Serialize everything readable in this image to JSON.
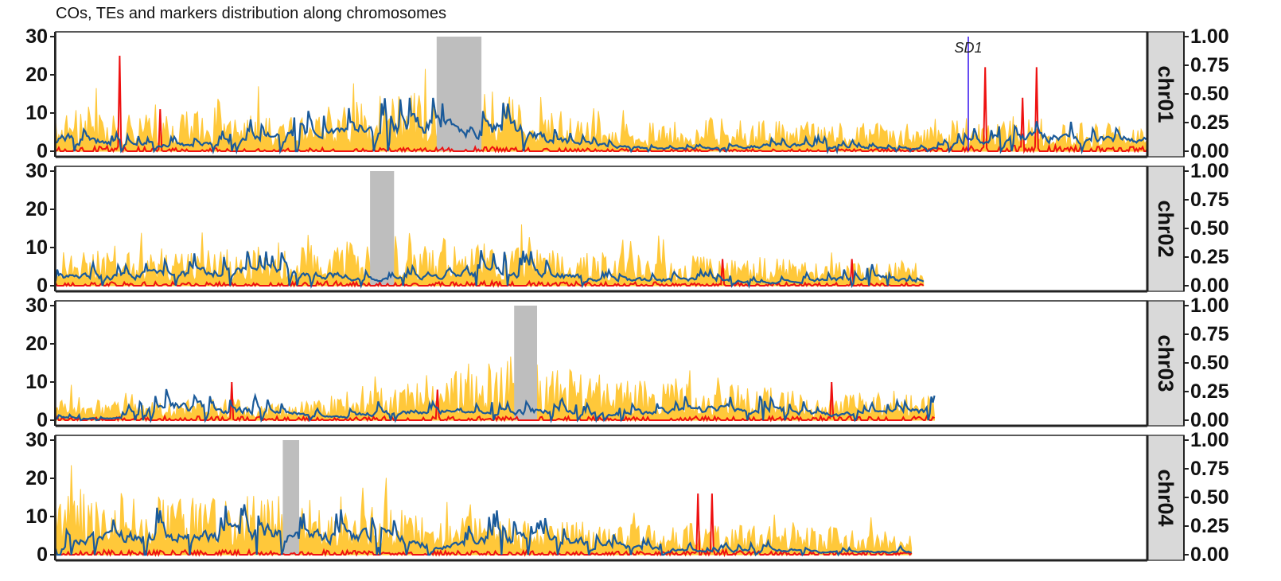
{
  "chart_data": {
    "type": "line",
    "title": "COs, TEs and markers distribution along chromosomes",
    "xlabel": "",
    "ylabel": "",
    "ylim_left": [
      0,
      30
    ],
    "ylim_right": [
      0,
      1
    ],
    "yticks_left": [
      "0",
      "10",
      "20",
      "30"
    ],
    "yticks_right": [
      "0.00",
      "0.25",
      "0.50",
      "0.75",
      "1.00"
    ],
    "xlim": [
      0,
      100
    ],
    "grid": false,
    "legend": "none",
    "colors": {
      "yellow": "#FFC83A",
      "red": "#EE1111",
      "blue": "#1A5A9A",
      "centromere": "#BEBEBE",
      "annotation": "#3311EE",
      "strip": "#D9D9D9"
    },
    "annotation": {
      "label": "SD1",
      "panel": 0,
      "x": 83.6
    },
    "panels": [
      {
        "label": "chr01",
        "x_end": 100,
        "centromere": [
          34.9,
          39.0
        ],
        "spikes": [
          {
            "x": 5.8,
            "y": 25
          },
          {
            "x": 9.5,
            "y": 11
          },
          {
            "x": 85.1,
            "y": 22
          },
          {
            "x": 88.5,
            "y": 14
          },
          {
            "x": 89.9,
            "y": 22
          }
        ],
        "env": {
          "x": [
            0,
            5,
            10,
            15,
            20,
            25,
            30,
            34,
            39,
            42,
            45,
            50,
            55,
            60,
            65,
            70,
            75,
            80,
            85,
            90,
            95,
            100
          ],
          "yellow": [
            9,
            8,
            8,
            9,
            8,
            10,
            12,
            14,
            15,
            12,
            9,
            7,
            6,
            7,
            7,
            6,
            6,
            7,
            6,
            7,
            6,
            6
          ],
          "blue": [
            5,
            3,
            2,
            3,
            5,
            7,
            8,
            9,
            7,
            8,
            4,
            2,
            1,
            1,
            2,
            2,
            1,
            1,
            4,
            5,
            4,
            4
          ],
          "red": [
            0.5,
            0.7,
            0.4,
            0.4,
            0.4,
            0.5,
            0.5,
            0.5,
            0.6,
            0.5,
            0.4,
            0.4,
            0.3,
            0.3,
            0.3,
            0.3,
            0.3,
            0.4,
            0.8,
            0.9,
            0.6,
            0.6
          ]
        }
      },
      {
        "label": "chr02",
        "x_end": 79.5,
        "centromere": [
          28.8,
          31.0
        ],
        "spikes": [
          {
            "x": 61.1,
            "y": 7
          },
          {
            "x": 72.9,
            "y": 7
          }
        ],
        "env": {
          "x": [
            0,
            5,
            10,
            15,
            20,
            25,
            29,
            31,
            35,
            40,
            45,
            50,
            55,
            60,
            65,
            70,
            75,
            79.5
          ],
          "yellow": [
            7,
            7,
            7,
            8,
            8,
            9,
            10,
            11,
            10,
            9,
            8,
            7,
            7,
            6,
            6,
            5,
            5,
            5
          ],
          "blue": [
            3,
            3,
            4,
            5,
            5,
            4,
            2,
            2,
            4,
            6,
            4,
            2,
            2,
            2,
            1,
            2,
            3,
            1
          ],
          "red": [
            0.6,
            0.5,
            0.5,
            0.5,
            0.5,
            0.6,
            0.5,
            0.5,
            0.5,
            0.6,
            0.6,
            0.5,
            0.5,
            0.4,
            0.4,
            0.4,
            0.4,
            0.4
          ]
        }
      },
      {
        "label": "chr03",
        "x_end": 80.5,
        "centromere": [
          42.0,
          44.1
        ],
        "spikes": [
          {
            "x": 16.1,
            "y": 10
          },
          {
            "x": 35.0,
            "y": 8
          },
          {
            "x": 71.1,
            "y": 10
          }
        ],
        "env": {
          "x": [
            0,
            5,
            10,
            15,
            20,
            25,
            30,
            35,
            40,
            42,
            44,
            50,
            55,
            60,
            65,
            70,
            75,
            80.5
          ],
          "yellow": [
            6,
            4,
            4,
            5,
            4,
            5,
            8,
            10,
            10,
            14,
            12,
            9,
            8,
            8,
            7,
            6,
            6,
            5
          ],
          "blue": [
            1,
            0.5,
            5,
            4,
            3,
            1,
            3,
            3,
            3,
            3,
            3,
            2,
            3,
            4,
            4,
            2,
            2,
            4
          ],
          "red": [
            0.5,
            0.4,
            0.6,
            0.5,
            0.5,
            0.4,
            0.5,
            0.5,
            0.5,
            0.5,
            0.5,
            0.5,
            0.5,
            0.5,
            0.5,
            0.6,
            0.5,
            0.5
          ]
        }
      },
      {
        "label": "chr04",
        "x_end": 78.4,
        "centromere": [
          20.8,
          22.3
        ],
        "spikes": [
          {
            "x": 58.8,
            "y": 16
          },
          {
            "x": 60.1,
            "y": 16
          }
        ],
        "env": {
          "x": [
            0,
            5,
            10,
            15,
            20,
            21,
            23,
            25,
            30,
            35,
            40,
            45,
            50,
            55,
            60,
            65,
            70,
            75,
            78.4
          ],
          "yellow": [
            12,
            13,
            13,
            13,
            13,
            12,
            12,
            11,
            10,
            9,
            8,
            7,
            7,
            6,
            7,
            6,
            6,
            5,
            5
          ],
          "blue": [
            4,
            6,
            7,
            7,
            8,
            6,
            6,
            7,
            7,
            2,
            6,
            5,
            4,
            2,
            1,
            2,
            1,
            1,
            1
          ],
          "red": [
            0.6,
            0.6,
            0.6,
            0.6,
            0.6,
            0.5,
            0.5,
            0.6,
            0.5,
            0.5,
            0.5,
            0.5,
            0.5,
            0.4,
            0.8,
            0.5,
            0.5,
            0.4,
            0.4
          ]
        }
      }
    ]
  }
}
